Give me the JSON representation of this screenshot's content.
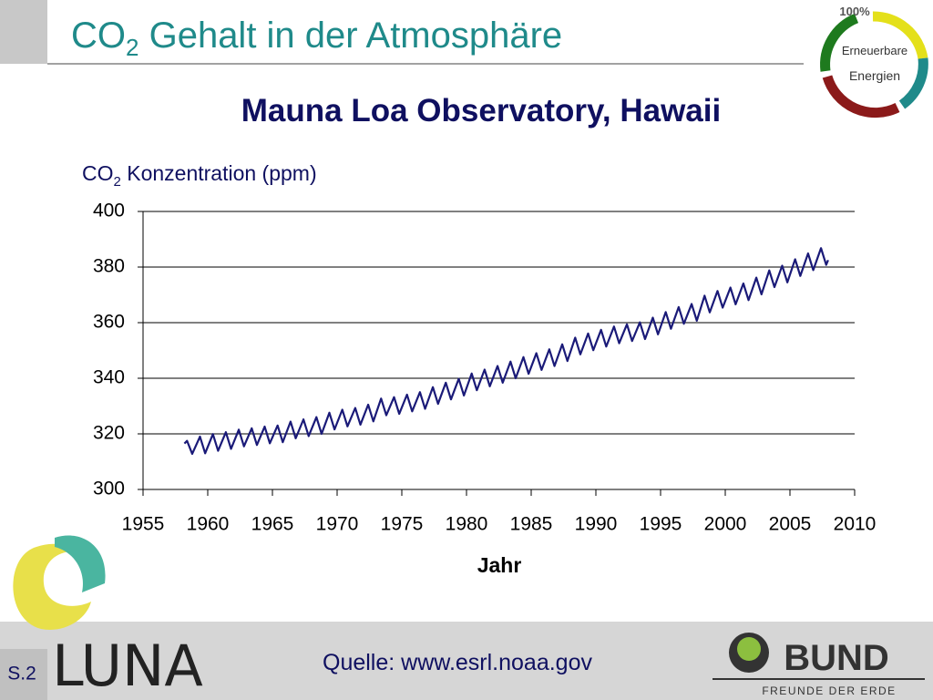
{
  "slide": {
    "title": {
      "main": "CO",
      "sub": "2",
      "rest": " Gehalt in der Atmosphäre"
    },
    "badge": {
      "percent": "100%",
      "line1": "Erneuerbare",
      "line2": "Energien"
    },
    "source": "Quelle:  www.esrl.noaa.gov",
    "page": "S.2",
    "logo_left": "LUNA",
    "logo_right": {
      "name": "BUND",
      "tagline": "FREUNDE DER ERDE"
    }
  },
  "chart_data": {
    "type": "line",
    "title": "Mauna Loa Observatory, Hawaii",
    "y_label": {
      "main": "CO",
      "sub": "2",
      "rest": " Konzentration (ppm)"
    },
    "x_label": "Jahr",
    "xlim": [
      1955,
      2010
    ],
    "xticks": [
      1955,
      1960,
      1965,
      1970,
      1975,
      1980,
      1985,
      1990,
      1995,
      2000,
      2005,
      2010
    ],
    "ylim": [
      300,
      400
    ],
    "yticks": [
      300,
      320,
      340,
      360,
      380,
      400
    ],
    "grid": true,
    "x": [
      1958.2,
      1958.4,
      1958.8,
      1959.4,
      1959.8,
      1960.4,
      1960.8,
      1961.4,
      1961.8,
      1962.4,
      1962.8,
      1963.4,
      1963.8,
      1964.4,
      1964.8,
      1965.4,
      1965.8,
      1966.4,
      1966.8,
      1967.4,
      1967.8,
      1968.4,
      1968.8,
      1969.4,
      1969.8,
      1970.4,
      1970.8,
      1971.4,
      1971.8,
      1972.4,
      1972.8,
      1973.4,
      1973.8,
      1974.4,
      1974.8,
      1975.4,
      1975.8,
      1976.4,
      1976.8,
      1977.4,
      1977.8,
      1978.4,
      1978.8,
      1979.4,
      1979.8,
      1980.4,
      1980.8,
      1981.4,
      1981.8,
      1982.4,
      1982.8,
      1983.4,
      1983.8,
      1984.4,
      1984.8,
      1985.4,
      1985.8,
      1986.4,
      1986.8,
      1987.4,
      1987.8,
      1988.4,
      1988.8,
      1989.4,
      1989.8,
      1990.4,
      1990.8,
      1991.4,
      1991.8,
      1992.4,
      1992.8,
      1993.4,
      1993.8,
      1994.4,
      1994.8,
      1995.4,
      1995.8,
      1996.4,
      1996.8,
      1997.4,
      1997.8,
      1998.4,
      1998.8,
      1999.4,
      1999.8,
      2000.4,
      2000.8,
      2001.4,
      2001.8,
      2002.4,
      2002.8,
      2003.4,
      2003.8,
      2004.4,
      2004.8,
      2005.4,
      2005.8,
      2006.4,
      2006.8,
      2007.4,
      2007.8,
      2007.95
    ],
    "series": [
      {
        "color": "#1a1a78",
        "values": [
          316.5,
          317.5,
          312.8,
          319.0,
          313.0,
          319.9,
          313.9,
          320.6,
          314.6,
          321.5,
          315.5,
          322.0,
          316.0,
          322.6,
          316.6,
          323.0,
          317.0,
          324.4,
          318.4,
          325.2,
          319.2,
          326.0,
          320.0,
          327.6,
          321.6,
          328.7,
          322.7,
          329.3,
          323.3,
          330.5,
          324.5,
          332.7,
          326.7,
          333.2,
          327.2,
          334.1,
          328.1,
          335.0,
          329.0,
          336.8,
          330.8,
          338.4,
          332.4,
          339.8,
          333.8,
          341.7,
          335.7,
          343.1,
          337.1,
          344.4,
          338.4,
          346.0,
          340.0,
          347.6,
          341.6,
          349.0,
          343.0,
          350.4,
          344.4,
          352.2,
          346.2,
          354.6,
          348.6,
          356.1,
          350.1,
          357.4,
          351.4,
          358.6,
          352.6,
          359.4,
          353.4,
          360.1,
          354.1,
          361.8,
          355.8,
          363.8,
          357.8,
          365.6,
          359.6,
          366.7,
          360.7,
          369.7,
          363.7,
          371.4,
          365.4,
          372.6,
          366.6,
          374.1,
          368.1,
          376.2,
          370.2,
          378.8,
          372.8,
          380.5,
          374.5,
          382.8,
          376.8,
          384.9,
          378.9,
          386.8,
          380.8,
          382.5
        ]
      }
    ]
  }
}
